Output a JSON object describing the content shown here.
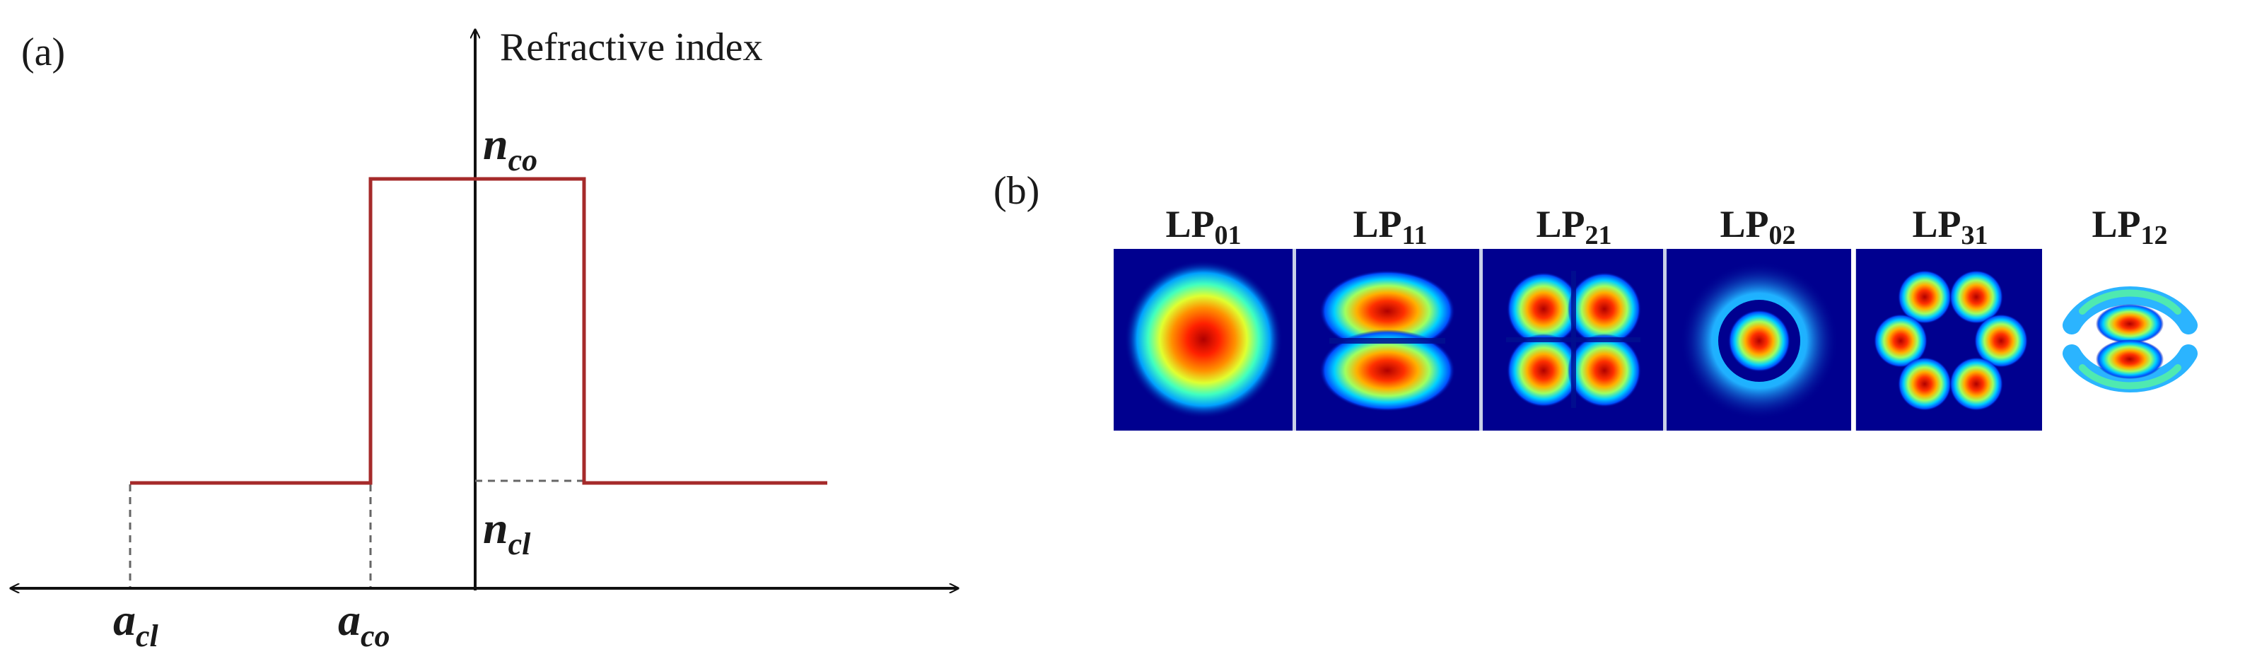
{
  "panel_a": {
    "label": "(a)",
    "y_axis_title": "Refractive index",
    "n_co": {
      "base": "n",
      "sub": "co"
    },
    "n_cl": {
      "base": "n",
      "sub": "cl"
    },
    "a_cl": {
      "base": "a",
      "sub": "cl"
    },
    "a_co": {
      "base": "a",
      "sub": "co"
    },
    "profile_color": "#a52a2a",
    "axis_color": "#111111",
    "guide_color": "#666666"
  },
  "panel_b": {
    "label": "(b)",
    "modes": [
      {
        "base": "LP",
        "sub": "01",
        "pattern": "fundamental-disk"
      },
      {
        "base": "LP",
        "sub": "11",
        "pattern": "two-lobe-vertical"
      },
      {
        "base": "LP",
        "sub": "21",
        "pattern": "four-lobe"
      },
      {
        "base": "LP",
        "sub": "02",
        "pattern": "center-spot-with-ring"
      },
      {
        "base": "LP",
        "sub": "31",
        "pattern": "six-lobe-ring"
      },
      {
        "base": "LP",
        "sub": "12",
        "pattern": "two-lobes-with-outer-arcs"
      }
    ],
    "colormap": [
      "#00008f",
      "#0050ff",
      "#00d0ff",
      "#7fff7f",
      "#ffe000",
      "#ff3000",
      "#b00000"
    ]
  }
}
